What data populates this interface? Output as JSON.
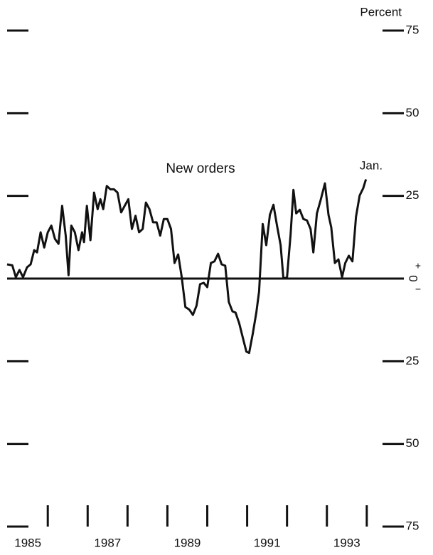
{
  "chart_data": {
    "type": "line",
    "unit_label": "Percent",
    "series_label": "New orders",
    "end_label": "Jan.",
    "zero_plus": "+",
    "zero_minus": "−",
    "series": [
      {
        "name": "New orders",
        "color": "#111111",
        "x": [
          1984.98,
          1985.11,
          1985.2,
          1985.29,
          1985.38,
          1985.48,
          1985.57,
          1985.66,
          1985.73,
          1985.82,
          1985.91,
          1986.0,
          1986.09,
          1986.18,
          1986.27,
          1986.36,
          1986.45,
          1986.52,
          1986.59,
          1986.68,
          1986.77,
          1986.86,
          1986.91,
          1986.98,
          1987.07,
          1987.16,
          1987.25,
          1987.32,
          1987.39,
          1987.48,
          1987.57,
          1987.66,
          1987.75,
          1987.84,
          1987.93,
          1988.02,
          1988.11,
          1988.2,
          1988.29,
          1988.38,
          1988.46,
          1988.55,
          1988.64,
          1988.73,
          1988.82,
          1988.91,
          1989.0,
          1989.09,
          1989.18,
          1989.27,
          1989.36,
          1989.45,
          1989.55,
          1989.64,
          1989.73,
          1989.82,
          1989.91,
          1990.0,
          1990.09,
          1990.18,
          1990.27,
          1990.36,
          1990.45,
          1990.54,
          1990.63,
          1990.71,
          1990.8,
          1990.89,
          1990.98,
          1991.05,
          1991.14,
          1991.23,
          1991.3,
          1991.39,
          1991.48,
          1991.57,
          1991.66,
          1991.75,
          1991.84,
          1991.91,
          1992.0,
          1992.09,
          1992.16,
          1992.23,
          1992.32,
          1992.41,
          1992.5,
          1992.59,
          1992.66,
          1992.75,
          1992.84,
          1992.95,
          1993.04,
          1993.11,
          1993.2,
          1993.29,
          1993.38,
          1993.46,
          1993.55,
          1993.64,
          1993.73,
          1993.82,
          1993.91,
          1993.98
        ],
        "values": [
          4.3,
          4,
          0.4,
          2.6,
          0.4,
          3.4,
          4.3,
          8.6,
          7.9,
          14,
          9.4,
          14,
          16,
          12,
          10.5,
          22,
          13,
          1,
          16,
          14,
          8.6,
          14,
          11,
          22,
          11.6,
          26,
          21,
          24,
          21,
          28,
          27,
          27,
          26,
          20,
          22,
          24,
          15,
          19,
          14,
          15,
          23,
          21,
          17,
          17,
          13,
          18,
          18,
          15,
          4.7,
          7.3,
          0.4,
          -8.6,
          -9.4,
          -11,
          -8.2,
          -1.7,
          -1.3,
          -2.6,
          4.7,
          5.2,
          7.5,
          4.3,
          3.9,
          -7.1,
          -9.9,
          -10.3,
          -13.5,
          -17.8,
          -22.1,
          -22.5,
          -16.7,
          -10.3,
          -3.9,
          16.5,
          10.1,
          19.3,
          22.3,
          15.9,
          10.1,
          0,
          0.4,
          13.3,
          26.8,
          19.7,
          20.8,
          18,
          17.6,
          15,
          7.9,
          19.7,
          23.6,
          28.8,
          19.3,
          15.5,
          4.7,
          5.8,
          0.4,
          4.7,
          6.9,
          5.2,
          18.7,
          25.1,
          27.3,
          30
        ]
      }
    ],
    "xlim": [
      1984.98,
      1994.93
    ],
    "xticks": [
      1986,
      1987,
      1988,
      1989,
      1990,
      1991,
      1992,
      1993,
      1994
    ],
    "xtick_labels": [
      {
        "value": 1985.5,
        "label": "1985"
      },
      {
        "value": 1987.5,
        "label": "1987"
      },
      {
        "value": 1989.5,
        "label": "1989"
      },
      {
        "value": 1991.5,
        "label": "1991"
      },
      {
        "value": 1993.5,
        "label": "1993"
      }
    ],
    "ylim": [
      -75,
      75
    ],
    "yticks": [
      75,
      50,
      25,
      0,
      {
        "value": -25,
        "label": "25"
      },
      {
        "value": -50,
        "label": "50"
      },
      {
        "value": -75,
        "label": "75"
      }
    ],
    "zero_line": true
  }
}
